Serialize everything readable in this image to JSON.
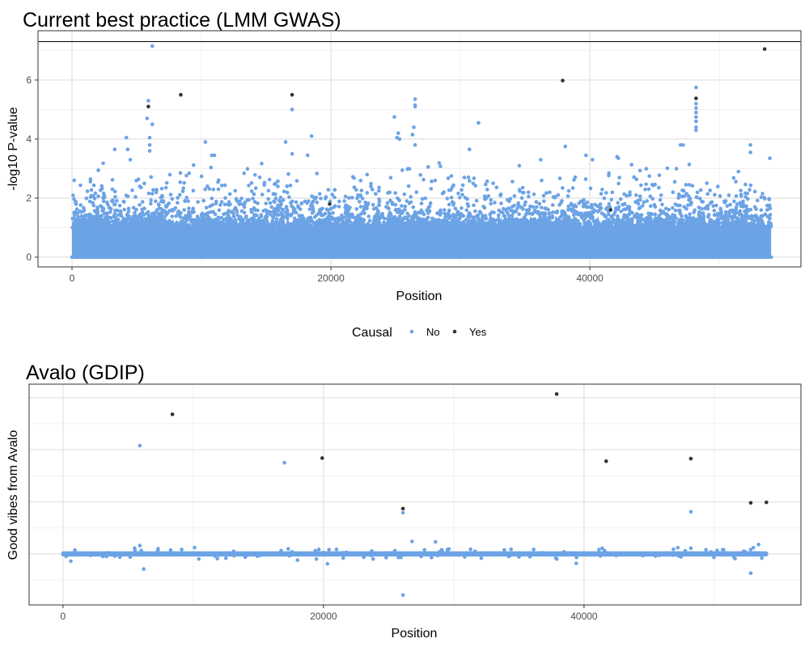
{
  "legend": {
    "title": "Causal",
    "items": [
      {
        "label": "No",
        "color": "#6CA3E5"
      },
      {
        "label": "Yes",
        "color": "#333333"
      }
    ],
    "placement": "between-panels-center"
  },
  "chart_data": [
    {
      "type": "scatter",
      "title": "Current best practice (LMM GWAS)",
      "xlabel": "Position",
      "ylabel": "-log10 P-value",
      "xlim": [
        -2625,
        56300
      ],
      "ylim": [
        -0.33,
        7.67
      ],
      "xticks": [
        {
          "v": 0,
          "label": "0"
        },
        {
          "v": 20000,
          "label": "20000"
        },
        {
          "v": 40000,
          "label": "40000"
        }
      ],
      "yticks": [
        {
          "v": 0,
          "label": "0"
        },
        {
          "v": 2,
          "label": "2"
        },
        {
          "v": 4,
          "label": "4"
        },
        {
          "v": 6,
          "label": "6"
        }
      ],
      "grid": true,
      "threshold_line": 7.3,
      "bulk": {
        "n_positions": 54000,
        "dense_band_max": 1.3,
        "scatter_max": 3.2
      },
      "causal_points": [
        [
          5900,
          5.1
        ],
        [
          8400,
          5.5
        ],
        [
          17000,
          5.5
        ],
        [
          19900,
          1.8
        ],
        [
          37900,
          5.98
        ],
        [
          41600,
          1.6
        ],
        [
          48200,
          5.38
        ],
        [
          53500,
          7.05
        ]
      ],
      "notable_points": [
        [
          6200,
          7.15
        ],
        [
          5900,
          5.3
        ],
        [
          5800,
          4.7
        ],
        [
          6200,
          4.5
        ],
        [
          6000,
          4.05
        ],
        [
          6000,
          3.8
        ],
        [
          6000,
          3.6
        ],
        [
          4200,
          4.05
        ],
        [
          3300,
          3.65
        ],
        [
          4300,
          3.65
        ],
        [
          4500,
          3.3
        ],
        [
          10300,
          3.9
        ],
        [
          10800,
          3.45
        ],
        [
          11000,
          3.45
        ],
        [
          16500,
          3.9
        ],
        [
          17000,
          5.0
        ],
        [
          17000,
          3.5
        ],
        [
          18500,
          4.1
        ],
        [
          18200,
          3.45
        ],
        [
          24900,
          4.75
        ],
        [
          25200,
          4.2
        ],
        [
          25300,
          4.0
        ],
        [
          25100,
          4.05
        ],
        [
          26500,
          5.35
        ],
        [
          26500,
          5.15
        ],
        [
          26500,
          5.1
        ],
        [
          26400,
          4.4
        ],
        [
          26300,
          4.15
        ],
        [
          26500,
          3.8
        ],
        [
          31400,
          4.55
        ],
        [
          30700,
          3.65
        ],
        [
          36200,
          3.3
        ],
        [
          38100,
          3.75
        ],
        [
          39700,
          3.45
        ],
        [
          40200,
          3.3
        ],
        [
          42100,
          3.4
        ],
        [
          42200,
          3.35
        ],
        [
          47000,
          3.8
        ],
        [
          47200,
          3.8
        ],
        [
          48200,
          5.75
        ],
        [
          48200,
          5.2
        ],
        [
          48200,
          5.05
        ],
        [
          48200,
          4.9
        ],
        [
          48200,
          4.75
        ],
        [
          48200,
          4.6
        ],
        [
          48200,
          4.4
        ],
        [
          48200,
          4.3
        ],
        [
          52400,
          3.8
        ],
        [
          52400,
          3.55
        ],
        [
          53900,
          3.35
        ]
      ]
    },
    {
      "type": "scatter",
      "title": "Avalo (GDIP)",
      "xlabel": "Position",
      "ylabel": "Good vibes from Avalo",
      "xlim": [
        -2600,
        56650
      ],
      "ylim": [
        -0.98,
        3.26
      ],
      "xticks": [
        {
          "v": 0,
          "label": "0"
        },
        {
          "v": 20000,
          "label": "20000"
        },
        {
          "v": 40000,
          "label": "40000"
        }
      ],
      "yticks_unlabeled": [
        -0.5,
        0,
        0.5,
        1,
        1.5,
        2,
        2.5,
        3
      ],
      "grid": true,
      "bulk": {
        "n_positions": 54000,
        "band_halfwidth": 0.05
      },
      "causal_points": [
        [
          8400,
          2.68
        ],
        [
          19900,
          1.84
        ],
        [
          26100,
          0.87
        ],
        [
          37900,
          3.07
        ],
        [
          41700,
          1.78
        ],
        [
          48200,
          1.83
        ],
        [
          52800,
          0.98
        ],
        [
          54000,
          0.99
        ]
      ],
      "notable_points": [
        [
          5900,
          2.08
        ],
        [
          17000,
          1.75
        ],
        [
          26100,
          0.79
        ],
        [
          26100,
          -0.79
        ],
        [
          48200,
          0.81
        ],
        [
          52800,
          -0.37
        ],
        [
          600,
          -0.14
        ],
        [
          6200,
          -0.29
        ],
        [
          5900,
          0.16
        ],
        [
          5500,
          0.11
        ],
        [
          7300,
          0.1
        ],
        [
          10100,
          0.12
        ],
        [
          18000,
          -0.12
        ],
        [
          20300,
          -0.19
        ],
        [
          26800,
          0.24
        ],
        [
          28600,
          0.23
        ],
        [
          39400,
          -0.18
        ],
        [
          41400,
          0.11
        ],
        [
          47200,
          0.12
        ],
        [
          48200,
          0.11
        ],
        [
          53400,
          0.18
        ],
        [
          53000,
          0.12
        ]
      ]
    }
  ]
}
